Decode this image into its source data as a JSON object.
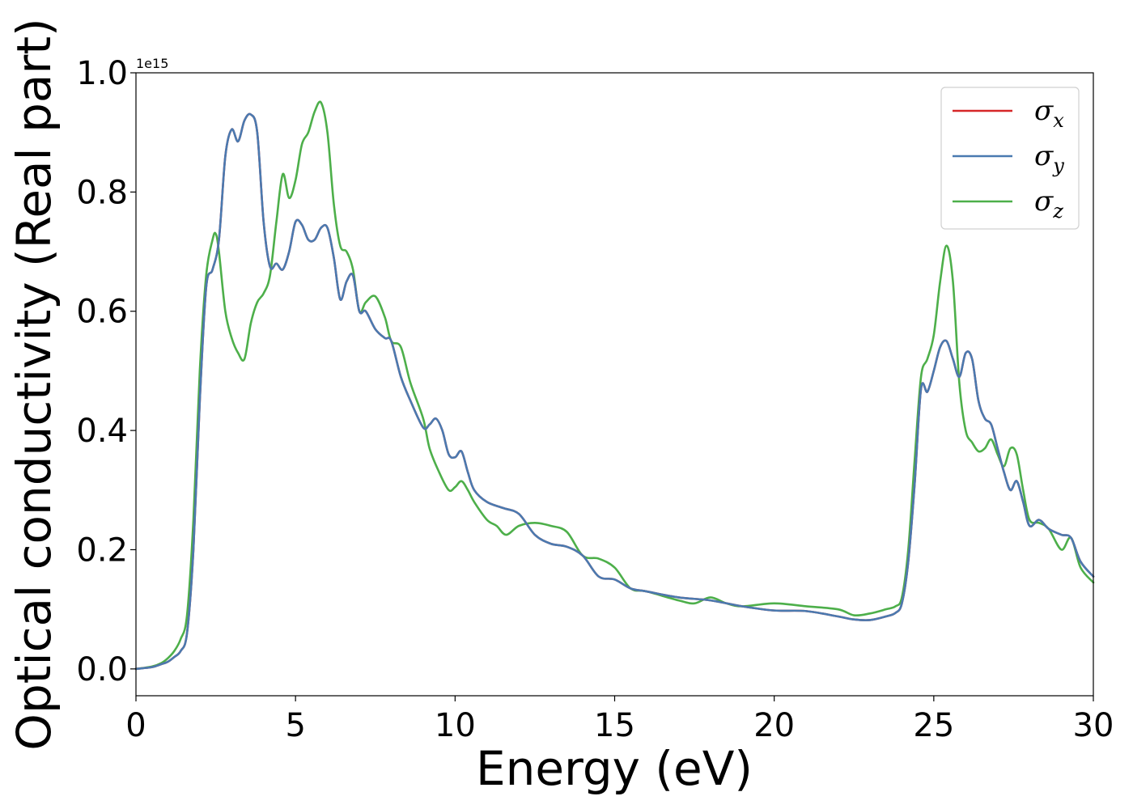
{
  "chart_data": {
    "type": "line",
    "xlabel": "Energy (eV)",
    "ylabel": "Optical conductivity (Real part)",
    "y_offset_label": "1e15",
    "xlim": [
      0,
      30
    ],
    "ylim": [
      -0.045,
      1.0
    ],
    "x_ticks": [
      0,
      5,
      10,
      15,
      20,
      25,
      30
    ],
    "y_ticks": [
      0.0,
      0.2,
      0.4,
      0.6,
      0.8,
      1.0
    ],
    "x_tick_labels": [
      "0",
      "5",
      "10",
      "15",
      "20",
      "25",
      "30"
    ],
    "y_tick_labels": [
      "0.0",
      "0.2",
      "0.4",
      "0.6",
      "0.8",
      "1.0"
    ],
    "grid": false,
    "legend_position": "top-right",
    "series": [
      {
        "name": "σ",
        "subscript": "x",
        "color": "#d62728",
        "x": [
          0,
          0.5,
          0.8,
          1.0,
          1.2,
          1.4,
          1.6,
          1.8,
          2.0,
          2.2,
          2.4,
          2.6,
          2.8,
          3.0,
          3.2,
          3.4,
          3.6,
          3.8,
          4.0,
          4.2,
          4.4,
          4.6,
          4.8,
          5.0,
          5.2,
          5.4,
          5.6,
          5.8,
          6.0,
          6.2,
          6.4,
          6.6,
          6.8,
          7.0,
          7.2,
          7.5,
          7.8,
          8.0,
          8.3,
          8.6,
          9.0,
          9.2,
          9.4,
          9.6,
          9.8,
          10.0,
          10.2,
          10.4,
          10.6,
          11.0,
          11.5,
          12.0,
          12.5,
          13.0,
          13.5,
          14.0,
          14.5,
          15.0,
          15.5,
          16.0,
          17.0,
          18.0,
          19.0,
          20.0,
          21.0,
          22.0,
          22.5,
          23.0,
          23.5,
          23.8,
          24.0,
          24.2,
          24.4,
          24.6,
          24.8,
          25.0,
          25.2,
          25.4,
          25.6,
          25.8,
          26.0,
          26.2,
          26.4,
          26.6,
          26.8,
          27.0,
          27.2,
          27.4,
          27.6,
          27.8,
          28.0,
          28.3,
          28.6,
          29.0,
          29.3,
          29.6,
          30.0
        ],
        "values": [
          0.0,
          0.003,
          0.008,
          0.012,
          0.02,
          0.03,
          0.06,
          0.2,
          0.45,
          0.64,
          0.67,
          0.72,
          0.86,
          0.905,
          0.885,
          0.92,
          0.93,
          0.9,
          0.75,
          0.675,
          0.68,
          0.67,
          0.7,
          0.75,
          0.745,
          0.72,
          0.72,
          0.74,
          0.74,
          0.69,
          0.62,
          0.65,
          0.66,
          0.6,
          0.6,
          0.57,
          0.555,
          0.55,
          0.49,
          0.45,
          0.405,
          0.41,
          0.42,
          0.4,
          0.36,
          0.355,
          0.365,
          0.33,
          0.3,
          0.28,
          0.27,
          0.26,
          0.225,
          0.21,
          0.205,
          0.19,
          0.155,
          0.15,
          0.135,
          0.13,
          0.12,
          0.115,
          0.105,
          0.098,
          0.097,
          0.088,
          0.083,
          0.082,
          0.088,
          0.094,
          0.11,
          0.18,
          0.31,
          0.47,
          0.465,
          0.5,
          0.54,
          0.55,
          0.52,
          0.49,
          0.53,
          0.52,
          0.45,
          0.42,
          0.41,
          0.37,
          0.33,
          0.3,
          0.315,
          0.28,
          0.24,
          0.25,
          0.235,
          0.225,
          0.22,
          0.18,
          0.155
        ]
      },
      {
        "name": "σ",
        "subscript": "y",
        "color": "#4a7ab0",
        "x": [
          0,
          0.5,
          0.8,
          1.0,
          1.2,
          1.4,
          1.6,
          1.8,
          2.0,
          2.2,
          2.4,
          2.6,
          2.8,
          3.0,
          3.2,
          3.4,
          3.6,
          3.8,
          4.0,
          4.2,
          4.4,
          4.6,
          4.8,
          5.0,
          5.2,
          5.4,
          5.6,
          5.8,
          6.0,
          6.2,
          6.4,
          6.6,
          6.8,
          7.0,
          7.2,
          7.5,
          7.8,
          8.0,
          8.3,
          8.6,
          9.0,
          9.2,
          9.4,
          9.6,
          9.8,
          10.0,
          10.2,
          10.4,
          10.6,
          11.0,
          11.5,
          12.0,
          12.5,
          13.0,
          13.5,
          14.0,
          14.5,
          15.0,
          15.5,
          16.0,
          17.0,
          18.0,
          19.0,
          20.0,
          21.0,
          22.0,
          22.5,
          23.0,
          23.5,
          23.8,
          24.0,
          24.2,
          24.4,
          24.6,
          24.8,
          25.0,
          25.2,
          25.4,
          25.6,
          25.8,
          26.0,
          26.2,
          26.4,
          26.6,
          26.8,
          27.0,
          27.2,
          27.4,
          27.6,
          27.8,
          28.0,
          28.3,
          28.6,
          29.0,
          29.3,
          29.6,
          30.0
        ],
        "values": [
          0.0,
          0.003,
          0.008,
          0.012,
          0.02,
          0.03,
          0.06,
          0.2,
          0.45,
          0.64,
          0.67,
          0.72,
          0.86,
          0.905,
          0.885,
          0.92,
          0.93,
          0.9,
          0.75,
          0.675,
          0.68,
          0.67,
          0.7,
          0.75,
          0.745,
          0.72,
          0.72,
          0.74,
          0.74,
          0.69,
          0.62,
          0.65,
          0.66,
          0.6,
          0.6,
          0.57,
          0.555,
          0.55,
          0.49,
          0.45,
          0.405,
          0.41,
          0.42,
          0.4,
          0.36,
          0.355,
          0.365,
          0.33,
          0.3,
          0.28,
          0.27,
          0.26,
          0.225,
          0.21,
          0.205,
          0.19,
          0.155,
          0.15,
          0.135,
          0.13,
          0.12,
          0.115,
          0.105,
          0.098,
          0.097,
          0.088,
          0.083,
          0.082,
          0.088,
          0.094,
          0.11,
          0.18,
          0.31,
          0.47,
          0.465,
          0.5,
          0.54,
          0.55,
          0.52,
          0.49,
          0.53,
          0.52,
          0.45,
          0.42,
          0.41,
          0.37,
          0.33,
          0.3,
          0.315,
          0.28,
          0.24,
          0.25,
          0.235,
          0.225,
          0.22,
          0.18,
          0.155
        ]
      },
      {
        "name": "σ",
        "subscript": "z",
        "color": "#4daf4a",
        "x": [
          0,
          0.5,
          0.8,
          1.0,
          1.2,
          1.4,
          1.6,
          1.8,
          2.0,
          2.2,
          2.4,
          2.5,
          2.6,
          2.8,
          3.0,
          3.2,
          3.4,
          3.6,
          3.8,
          4.0,
          4.2,
          4.4,
          4.6,
          4.8,
          5.0,
          5.2,
          5.4,
          5.6,
          5.8,
          6.0,
          6.2,
          6.4,
          6.6,
          6.8,
          7.0,
          7.2,
          7.5,
          7.8,
          8.0,
          8.3,
          8.6,
          9.0,
          9.2,
          9.5,
          9.8,
          10.0,
          10.2,
          10.4,
          10.6,
          11.0,
          11.3,
          11.6,
          12.0,
          12.5,
          13.0,
          13.5,
          14.0,
          14.5,
          15.0,
          15.5,
          16.0,
          17.0,
          17.5,
          18.0,
          18.5,
          19.0,
          20.0,
          21.0,
          22.0,
          22.5,
          23.0,
          23.5,
          23.8,
          24.0,
          24.2,
          24.4,
          24.6,
          24.8,
          25.0,
          25.2,
          25.4,
          25.6,
          25.8,
          26.0,
          26.2,
          26.4,
          26.6,
          26.8,
          27.0,
          27.2,
          27.4,
          27.6,
          27.8,
          28.0,
          28.3,
          28.6,
          29.0,
          29.3,
          29.6,
          30.0
        ],
        "values": [
          0.0,
          0.004,
          0.01,
          0.018,
          0.03,
          0.05,
          0.09,
          0.25,
          0.5,
          0.66,
          0.72,
          0.73,
          0.7,
          0.6,
          0.555,
          0.53,
          0.52,
          0.58,
          0.615,
          0.63,
          0.66,
          0.75,
          0.83,
          0.79,
          0.82,
          0.88,
          0.9,
          0.935,
          0.95,
          0.9,
          0.78,
          0.71,
          0.7,
          0.67,
          0.6,
          0.615,
          0.625,
          0.59,
          0.55,
          0.54,
          0.48,
          0.42,
          0.37,
          0.33,
          0.3,
          0.305,
          0.315,
          0.3,
          0.28,
          0.25,
          0.24,
          0.225,
          0.24,
          0.245,
          0.24,
          0.23,
          0.19,
          0.185,
          0.17,
          0.135,
          0.13,
          0.115,
          0.11,
          0.12,
          0.11,
          0.105,
          0.11,
          0.105,
          0.1,
          0.09,
          0.093,
          0.1,
          0.105,
          0.12,
          0.2,
          0.35,
          0.49,
          0.52,
          0.56,
          0.65,
          0.71,
          0.65,
          0.48,
          0.4,
          0.38,
          0.365,
          0.37,
          0.385,
          0.36,
          0.34,
          0.37,
          0.36,
          0.3,
          0.25,
          0.245,
          0.235,
          0.2,
          0.22,
          0.17,
          0.145
        ]
      }
    ]
  }
}
